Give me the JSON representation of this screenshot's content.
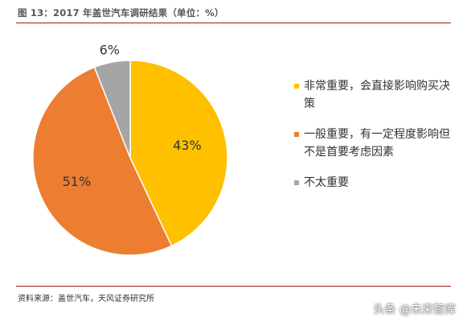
{
  "title": "图 13：2017 年盖世汽车调研结果（单位：%）",
  "source": "资料来源：盖世汽车，天风证券研究所",
  "watermark": "头条 @未来智库",
  "chart_data": {
    "type": "pie",
    "labels": [
      "非常重要，会直接影响购买决策",
      "一般重要，有一定程度影响但不是首要考虑因素",
      "不太重要"
    ],
    "values": [
      43,
      51,
      6
    ],
    "value_labels": [
      "43%",
      "51%",
      "6%"
    ],
    "colors": [
      "#FFC000",
      "#ED7D31",
      "#A5A5A5"
    ],
    "start_angle_deg": 0,
    "direction": "clockwise",
    "legend_position": "right"
  }
}
